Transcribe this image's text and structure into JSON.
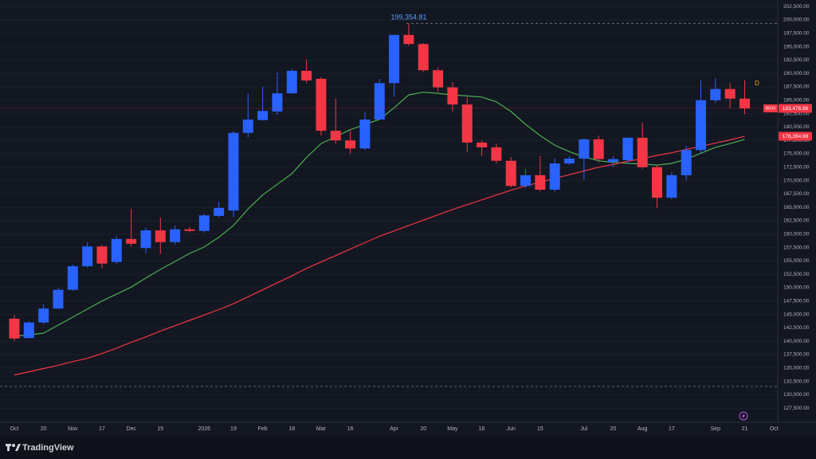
{
  "chart_data": {
    "type": "candlestick",
    "symbol": "IBOV",
    "interval": "D",
    "up_color": "#2962ff",
    "down_color": "#f23645",
    "categories": [
      "Oct",
      null,
      "20",
      null,
      "Nov",
      null,
      "17",
      null,
      "Dec",
      null,
      "15",
      null,
      null,
      "2026",
      null,
      "19",
      null,
      "Feb",
      null,
      "18",
      null,
      "Mar",
      null,
      "16",
      null,
      null,
      "Apr",
      null,
      "20",
      null,
      "May",
      null,
      "18",
      null,
      "Jun",
      null,
      "15",
      null,
      null,
      "Jul",
      null,
      "20",
      null,
      "Aug",
      null,
      "17",
      null,
      null,
      "Sep",
      null,
      "21",
      null,
      "Oct"
    ],
    "open": [
      144200,
      140600,
      143500,
      146100,
      149600,
      154000,
      157700,
      154800,
      159100,
      157400,
      160700,
      158500,
      160900,
      160600,
      163400,
      164400,
      178900,
      181300,
      182900,
      186300,
      190500,
      189000,
      179300,
      177500,
      176000,
      181400,
      188200,
      197200,
      195500,
      190600,
      187400,
      184200,
      177100,
      176200,
      173700,
      169000,
      171000,
      168300,
      173200,
      174100,
      177700,
      173500,
      173800,
      178000,
      172500,
      166800,
      171000,
      175700,
      185000,
      187100,
      185300,
      null,
      null
    ],
    "high": [
      144900,
      143700,
      146900,
      149900,
      154300,
      158500,
      158000,
      159700,
      164700,
      161200,
      163100,
      161600,
      161300,
      163800,
      166100,
      179200,
      186200,
      187600,
      190200,
      190900,
      192600,
      189300,
      185300,
      179200,
      182900,
      189000,
      197200,
      199354.81,
      195700,
      191100,
      188400,
      185600,
      177500,
      176900,
      174400,
      172200,
      174600,
      174100,
      174600,
      177800,
      178400,
      174600,
      178100,
      180800,
      172900,
      171600,
      176500,
      188800,
      189100,
      188200,
      188700,
      null,
      null
    ],
    "low": [
      140000,
      140500,
      143200,
      146000,
      149400,
      153700,
      153600,
      154500,
      157700,
      156400,
      156300,
      158000,
      160300,
      160300,
      163100,
      163200,
      178100,
      181200,
      182300,
      186200,
      188200,
      178400,
      176900,
      175000,
      175700,
      181300,
      185700,
      195200,
      190300,
      186600,
      182900,
      175400,
      174600,
      173200,
      168700,
      168600,
      168000,
      167900,
      172900,
      170100,
      173400,
      172500,
      173200,
      172200,
      164900,
      166500,
      170000,
      175100,
      184500,
      183500,
      182400,
      null,
      null
    ],
    "close": [
      140500,
      143500,
      146100,
      149600,
      154000,
      157700,
      154500,
      159100,
      158200,
      160700,
      158500,
      160900,
      160600,
      163500,
      164900,
      178900,
      181400,
      183000,
      186300,
      190500,
      188700,
      179300,
      177500,
      176000,
      181400,
      188200,
      197200,
      195500,
      190600,
      187400,
      184200,
      177100,
      176200,
      173700,
      169000,
      171000,
      168300,
      173200,
      174100,
      177700,
      174000,
      174000,
      178000,
      172500,
      166800,
      171000,
      175700,
      185000,
      187100,
      185300,
      183476.86,
      null,
      null
    ],
    "lines": [
      {
        "color": "#4caf50",
        "values": [
          140900,
          141200,
          141500,
          143000,
          144500,
          146000,
          147500,
          148800,
          150100,
          151800,
          153400,
          154900,
          156400,
          157600,
          159400,
          161600,
          164700,
          167300,
          169300,
          171300,
          174300,
          176900,
          178200,
          179500,
          180500,
          181400,
          183600,
          186000,
          186500,
          186300,
          186000,
          185800,
          185600,
          184700,
          182900,
          180500,
          178400,
          176600,
          175400,
          174400,
          173700,
          173400,
          173200,
          173100,
          172900,
          173200,
          174000,
          175100,
          176200,
          176900,
          177700,
          null,
          null
        ]
      },
      {
        "color": "#f23645",
        "values": [
          133700,
          134300,
          134900,
          135500,
          136200,
          136800,
          137700,
          138700,
          139800,
          140800,
          141900,
          142900,
          143900,
          144900,
          145900,
          147000,
          148300,
          149600,
          150900,
          152200,
          153600,
          154800,
          156000,
          157200,
          158400,
          159600,
          160600,
          161600,
          162600,
          163600,
          164600,
          165500,
          166400,
          167300,
          168200,
          169000,
          169700,
          170400,
          171100,
          171800,
          172500,
          173000,
          173600,
          174100,
          174700,
          175200,
          175800,
          176400,
          177000,
          177600,
          178264.88,
          null,
          null
        ]
      }
    ],
    "annotations": [
      {
        "value": 199354.81,
        "label": "199,354.81"
      }
    ],
    "dashed_lines": [
      199354.81,
      131550
    ],
    "price_labels": [
      {
        "value": 183476.86,
        "label": "183,476.86",
        "color": "#f23645"
      },
      {
        "value": 178264.88,
        "label": "178,264.88",
        "color": "#f23645"
      }
    ],
    "ylim": [
      124850,
      203720
    ],
    "yticks": [
      {
        "value": 127500,
        "label": "127,500.00"
      },
      {
        "value": 130000,
        "label": "130,000.00"
      },
      {
        "value": 132500,
        "label": "132,500.00"
      },
      {
        "value": 135000,
        "label": "135,000.00"
      },
      {
        "value": 137500,
        "label": "137,500.00"
      },
      {
        "value": 140000,
        "label": "140,000.00"
      },
      {
        "value": 142500,
        "label": "142,500.00"
      },
      {
        "value": 145000,
        "label": "145,000.00"
      },
      {
        "value": 147500,
        "label": "147,500.00"
      },
      {
        "value": 150000,
        "label": "150,000.00"
      },
      {
        "value": 152500,
        "label": "152,500.00"
      },
      {
        "value": 155000,
        "label": "155,000.00"
      },
      {
        "value": 157500,
        "label": "157,500.00"
      },
      {
        "value": 160000,
        "label": "160,000.00"
      },
      {
        "value": 162500,
        "label": "162,500.00"
      },
      {
        "value": 165000,
        "label": "165,000.00"
      },
      {
        "value": 167500,
        "label": "167,500.00"
      },
      {
        "value": 170000,
        "label": "170,000.00"
      },
      {
        "value": 172500,
        "label": "172,500.00"
      },
      {
        "value": 175000,
        "label": "175,000.00"
      },
      {
        "value": 177500,
        "label": "177,500.00"
      },
      {
        "value": 180000,
        "label": "180,000.00"
      },
      {
        "value": 182500,
        "label": "182,500.00"
      },
      {
        "value": 185000,
        "label": "185,000.00"
      },
      {
        "value": 187500,
        "label": "187,500.00"
      },
      {
        "value": 190000,
        "label": "190,000.00"
      },
      {
        "value": 192500,
        "label": "192,500.00"
      },
      {
        "value": 195000,
        "label": "195,000.00"
      },
      {
        "value": 197500,
        "label": "197,500.00"
      },
      {
        "value": 200000,
        "label": "200,000.00"
      },
      {
        "value": 202500,
        "label": "202,500.00"
      }
    ],
    "grid": true
  },
  "brand": "TradingView"
}
